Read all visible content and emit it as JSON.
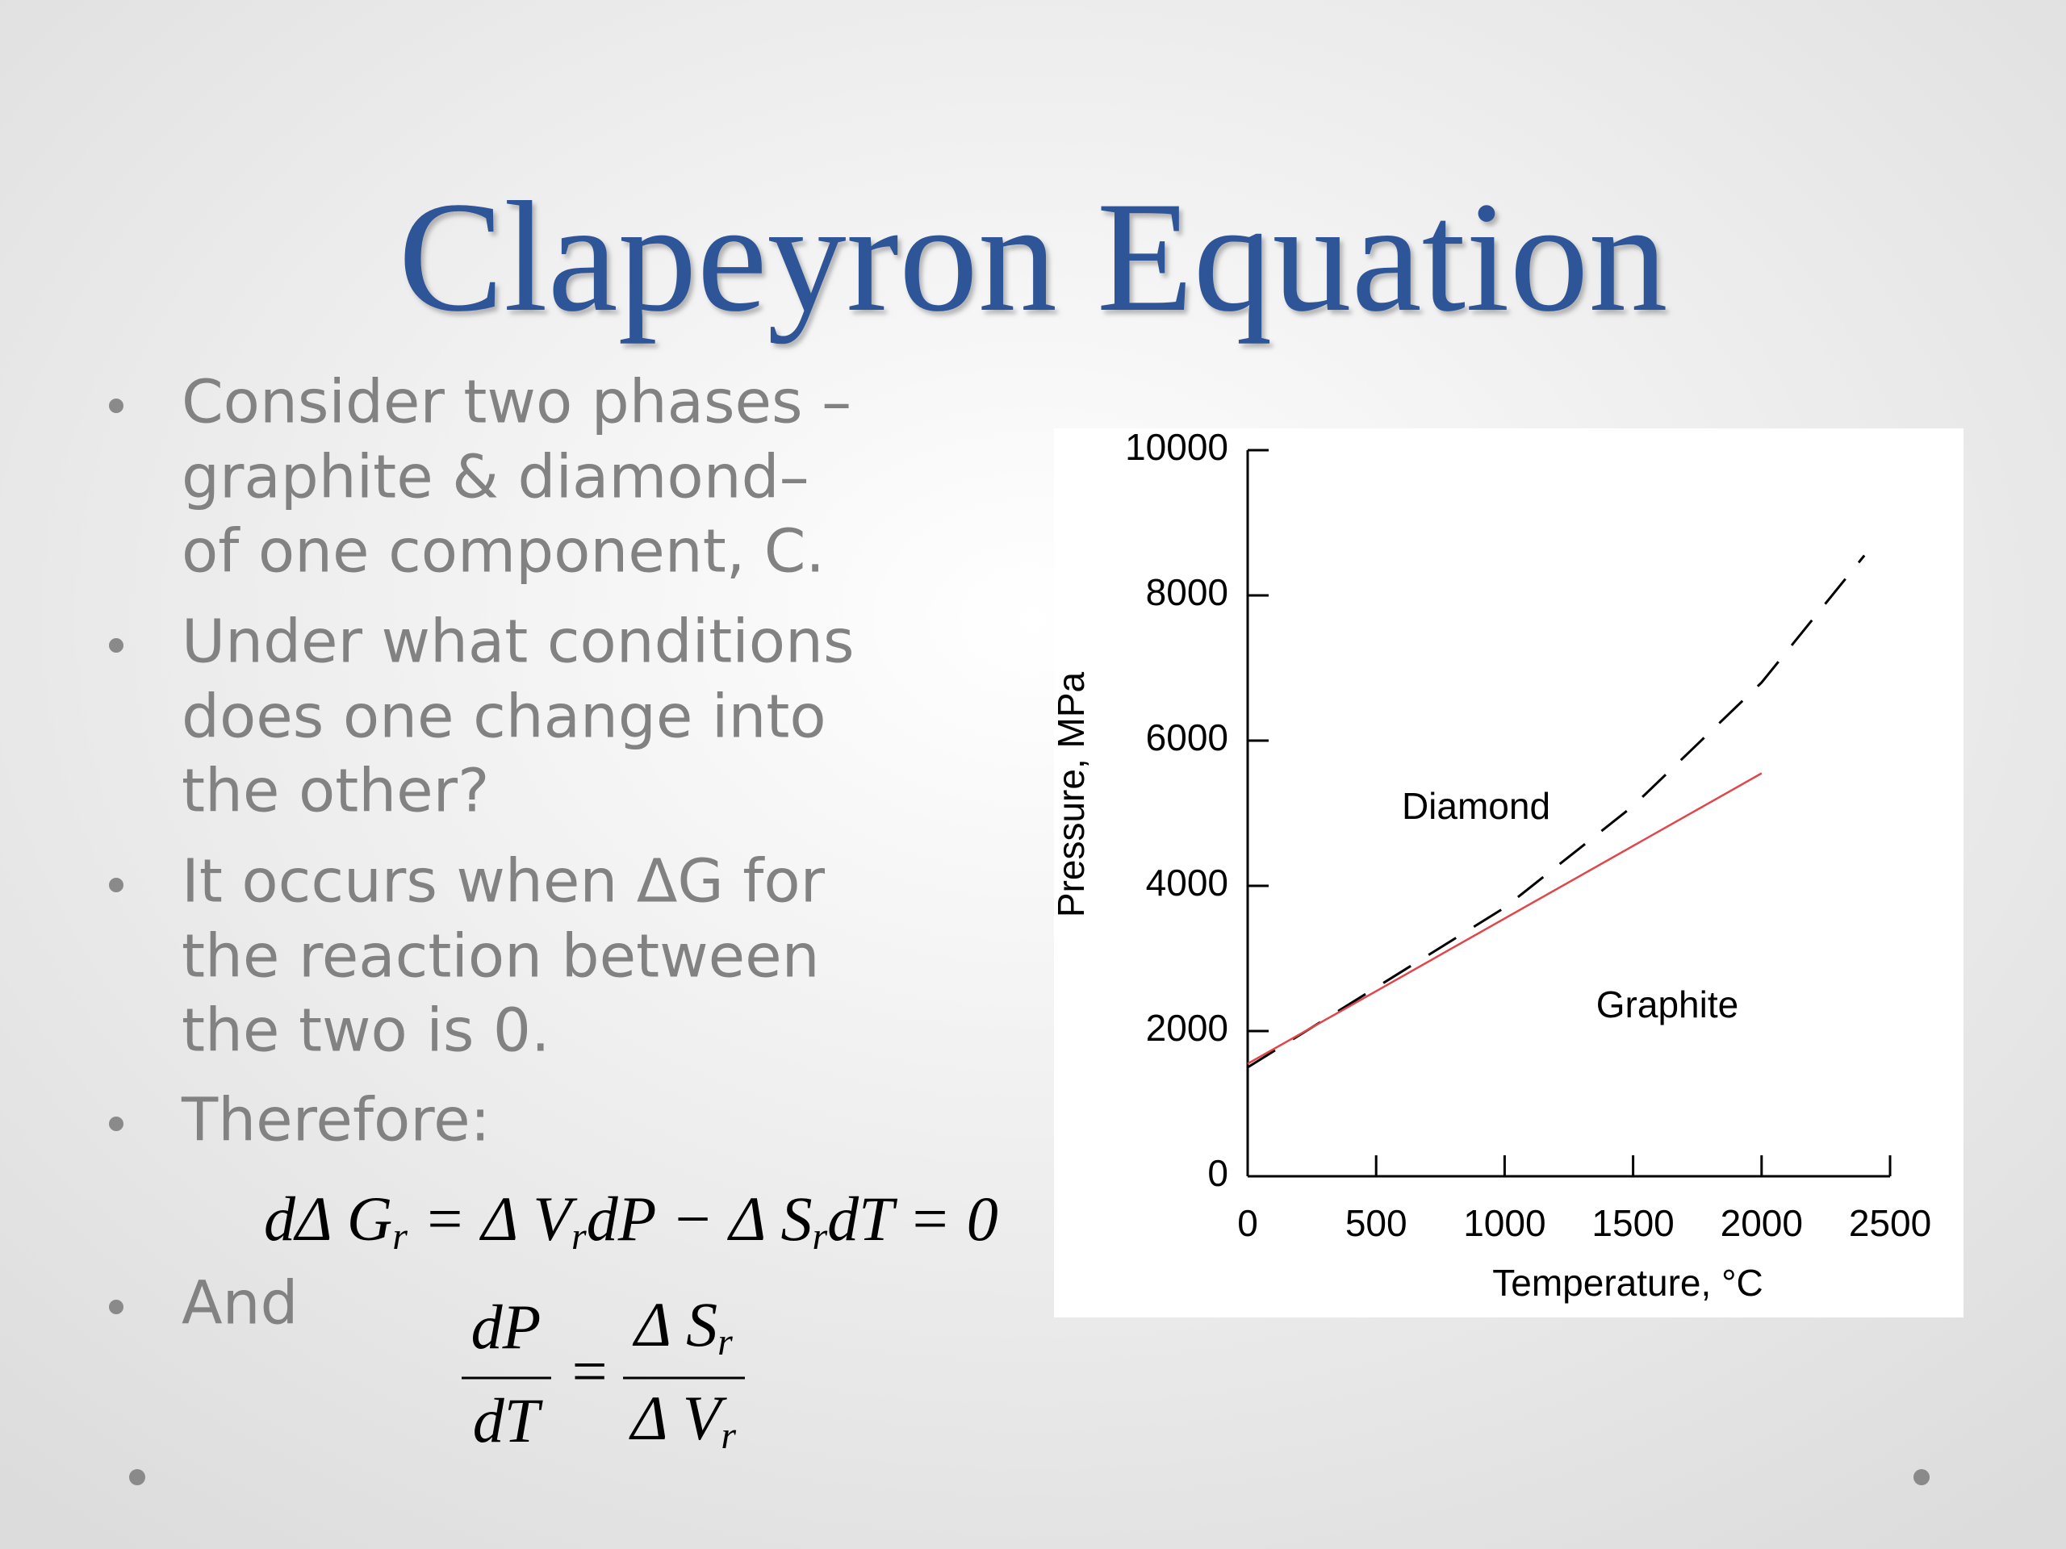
{
  "title": "Clapeyron Equation",
  "bullets": [
    [
      "Consider two phases –",
      "graphite & diamond–",
      "of one component, C."
    ],
    [
      "Under what conditions",
      "does one change into",
      "the other?"
    ],
    [
      "It occurs when ΔG for",
      "the reaction between",
      "the two is 0."
    ],
    [
      "Therefore:"
    ],
    [
      "And"
    ]
  ],
  "equation_1": [
    "dΔ G",
    "r",
    " = Δ V",
    "r",
    "dP − Δ S",
    "r",
    "dT = 0"
  ],
  "equation_2": {
    "left_numerator": "dP",
    "left_denominator": "dT",
    "equals": "=",
    "right_numerator": [
      "Δ S",
      "r"
    ],
    "right_denominator": [
      "Δ V",
      "r"
    ]
  },
  "chart_data": {
    "type": "line",
    "xlabel": "Temperature, °C",
    "ylabel": "Pressure, MPa",
    "annotations": [
      "Diamond",
      "Graphite"
    ],
    "xlim": [
      0,
      2500
    ],
    "xticks": [
      0,
      500,
      1000,
      1500,
      2000,
      2500
    ],
    "ylim": [
      0,
      10000
    ],
    "yticks": [
      0,
      2000,
      4000,
      6000,
      8000,
      10000
    ],
    "series": [
      {
        "color": "#000000",
        "style": "dashed",
        "x": [
          0,
          500,
          1000,
          1500,
          2000,
          2400
        ],
        "values": [
          1500,
          2600,
          3700,
          5100,
          6800,
          8550
        ]
      },
      {
        "color": "#e0474c",
        "style": "solid",
        "x": [
          0,
          2000
        ],
        "values": [
          1550,
          5550
        ]
      }
    ]
  }
}
